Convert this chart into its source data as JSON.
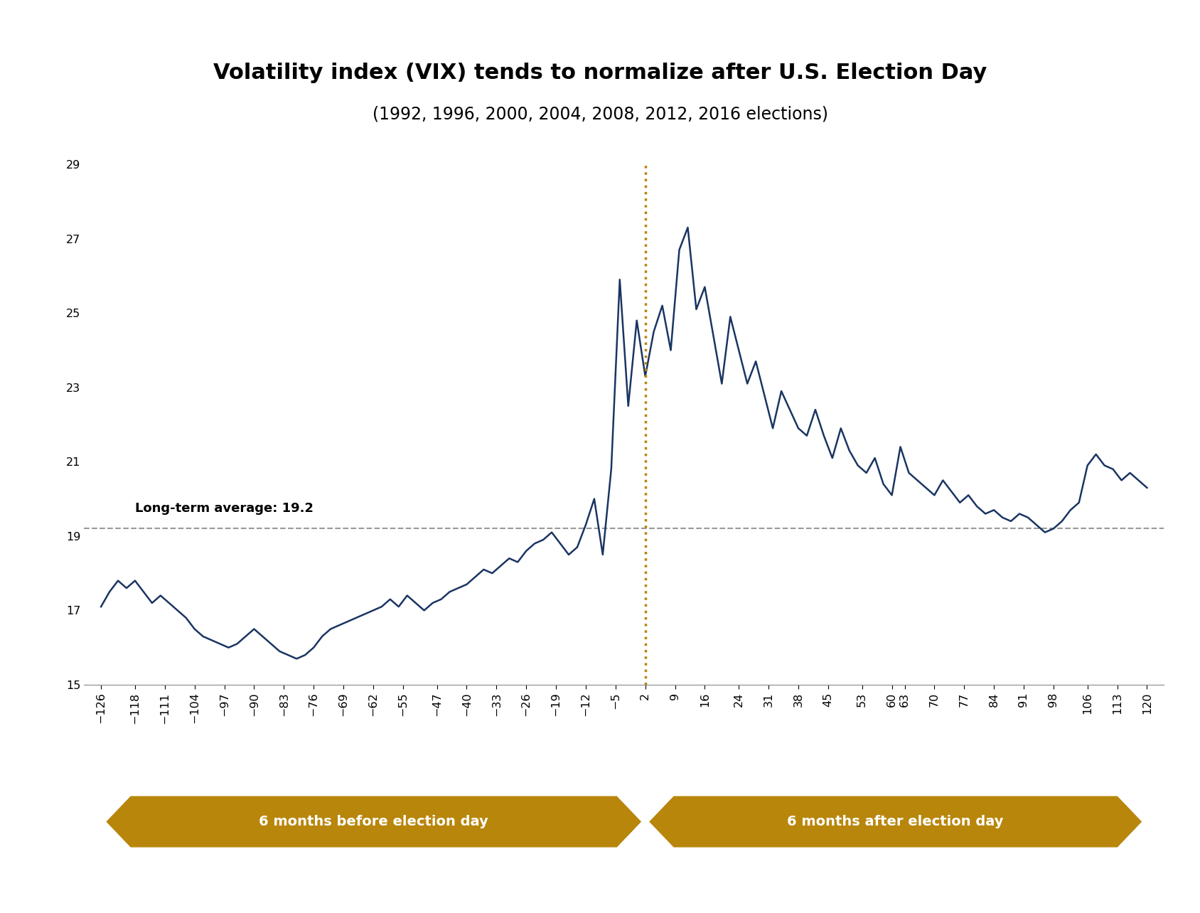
{
  "title": "Volatility index (VIX) tends to normalize after U.S. Election Day",
  "subtitle": "(1992, 1996, 2000, 2004, 2008, 2012, 2016 elections)",
  "title_fontsize": 22,
  "subtitle_fontsize": 17,
  "line_color": "#1a3562",
  "avg_line_color": "#999999",
  "avg_value": 19.2,
  "avg_label": "Long-term average: 19.2",
  "election_line_color": "#b8860b",
  "ylim": [
    15,
    29
  ],
  "yticks": [
    15,
    17,
    19,
    21,
    23,
    25,
    27,
    29
  ],
  "xticks": [
    -126,
    -118,
    -111,
    -104,
    -97,
    -90,
    -83,
    -76,
    -69,
    -62,
    -55,
    -47,
    -40,
    -33,
    -26,
    -19,
    -12,
    -5,
    2,
    9,
    16,
    24,
    31,
    38,
    45,
    53,
    60,
    63,
    70,
    77,
    84,
    91,
    98,
    106,
    113,
    120
  ],
  "election_day_x": 2,
  "before_arrow_label": "6 months before election day",
  "after_arrow_label": "6 months after election day",
  "arrow_color": "#b8860b",
  "x": [
    -126,
    -124,
    -122,
    -120,
    -118,
    -116,
    -114,
    -112,
    -110,
    -108,
    -106,
    -104,
    -102,
    -100,
    -98,
    -96,
    -94,
    -92,
    -90,
    -88,
    -86,
    -84,
    -82,
    -80,
    -78,
    -76,
    -74,
    -72,
    -70,
    -68,
    -66,
    -64,
    -62,
    -60,
    -58,
    -56,
    -54,
    -52,
    -50,
    -48,
    -46,
    -44,
    -42,
    -40,
    -38,
    -36,
    -34,
    -32,
    -30,
    -28,
    -26,
    -24,
    -22,
    -20,
    -18,
    -16,
    -14,
    -12,
    -10,
    -8,
    -6,
    -4,
    -2,
    0,
    2,
    4,
    6,
    8,
    10,
    12,
    14,
    16,
    18,
    20,
    22,
    24,
    26,
    28,
    30,
    32,
    34,
    36,
    38,
    40,
    42,
    44,
    46,
    48,
    50,
    52,
    54,
    56,
    58,
    60,
    62,
    64,
    66,
    68,
    70,
    72,
    74,
    76,
    78,
    80,
    82,
    84,
    86,
    88,
    90,
    92,
    94,
    96,
    98,
    100,
    102,
    104,
    106,
    108,
    110,
    112,
    114,
    116,
    118,
    120
  ],
  "y": [
    17.1,
    17.5,
    17.8,
    17.6,
    17.8,
    17.5,
    17.2,
    17.4,
    17.2,
    17.0,
    16.8,
    16.5,
    16.3,
    16.2,
    16.1,
    16.0,
    16.1,
    16.3,
    16.5,
    16.3,
    16.1,
    15.9,
    15.8,
    15.7,
    15.8,
    16.0,
    16.3,
    16.5,
    16.6,
    16.7,
    16.8,
    16.9,
    17.0,
    17.1,
    17.3,
    17.1,
    17.4,
    17.2,
    17.0,
    17.2,
    17.3,
    17.5,
    17.6,
    17.7,
    17.9,
    18.1,
    18.0,
    18.2,
    18.4,
    18.3,
    18.6,
    18.8,
    18.9,
    19.1,
    18.8,
    18.5,
    18.7,
    19.3,
    20.0,
    18.5,
    20.8,
    25.9,
    22.5,
    24.8,
    23.3,
    24.5,
    25.2,
    24.0,
    26.7,
    27.3,
    25.1,
    25.7,
    24.4,
    23.1,
    24.9,
    24.0,
    23.1,
    23.7,
    22.8,
    21.9,
    22.9,
    22.4,
    21.9,
    21.7,
    22.4,
    21.7,
    21.1,
    21.9,
    21.3,
    20.9,
    20.7,
    21.1,
    20.4,
    20.1,
    21.4,
    20.7,
    20.5,
    20.3,
    20.1,
    20.5,
    20.2,
    19.9,
    20.1,
    19.8,
    19.6,
    19.7,
    19.5,
    19.4,
    19.6,
    19.5,
    19.3,
    19.1,
    19.2,
    19.4,
    19.7,
    19.9,
    20.9,
    21.2,
    20.9,
    20.8,
    20.5,
    20.7,
    20.5,
    20.3
  ]
}
